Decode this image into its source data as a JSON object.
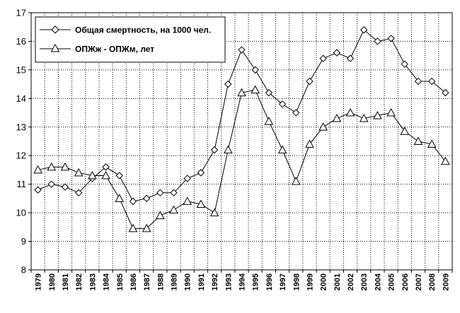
{
  "chart_data": {
    "type": "line",
    "categories": [
      "1979",
      "1980",
      "1981",
      "1982",
      "1983",
      "1984",
      "1985",
      "1986",
      "1987",
      "1988",
      "1989",
      "1990",
      "1991",
      "1992",
      "1993",
      "1994",
      "1995",
      "1996",
      "1997",
      "1998",
      "1999",
      "2000",
      "2001",
      "2002",
      "2003",
      "2004",
      "2005",
      "2006",
      "2007",
      "2008",
      "2009"
    ],
    "series": [
      {
        "name": "Общая смертность,  на 1000 чел.",
        "marker": "diamond",
        "values": [
          10.8,
          11.0,
          10.9,
          10.7,
          11.2,
          11.6,
          11.3,
          10.4,
          10.5,
          10.7,
          10.7,
          11.2,
          11.4,
          12.2,
          14.5,
          15.7,
          15.0,
          14.2,
          13.8,
          13.5,
          14.6,
          15.4,
          15.6,
          15.4,
          16.4,
          16.0,
          16.1,
          15.2,
          14.6,
          14.6,
          14.2
        ]
      },
      {
        "name": "ОПЖж - ОПЖм, лет",
        "marker": "triangle",
        "values": [
          11.5,
          11.6,
          11.6,
          11.4,
          11.3,
          11.3,
          10.5,
          9.45,
          9.45,
          9.9,
          10.1,
          10.4,
          10.3,
          10.0,
          12.2,
          14.2,
          14.3,
          13.2,
          12.2,
          11.1,
          12.4,
          13.0,
          13.3,
          13.5,
          13.3,
          13.4,
          13.5,
          12.85,
          12.5,
          12.4,
          11.8
        ]
      }
    ],
    "ylim": [
      8,
      17
    ],
    "yticks": [
      "8",
      "9",
      "10",
      "11",
      "12",
      "13",
      "14",
      "15",
      "16",
      "17"
    ],
    "grid": true,
    "legend_position": "top-left",
    "xtick_rotation": "vertical",
    "colors": {
      "line": "#000000",
      "marker_fill": "#ffffff",
      "grid": "#000000",
      "background": "#ffffff"
    }
  }
}
